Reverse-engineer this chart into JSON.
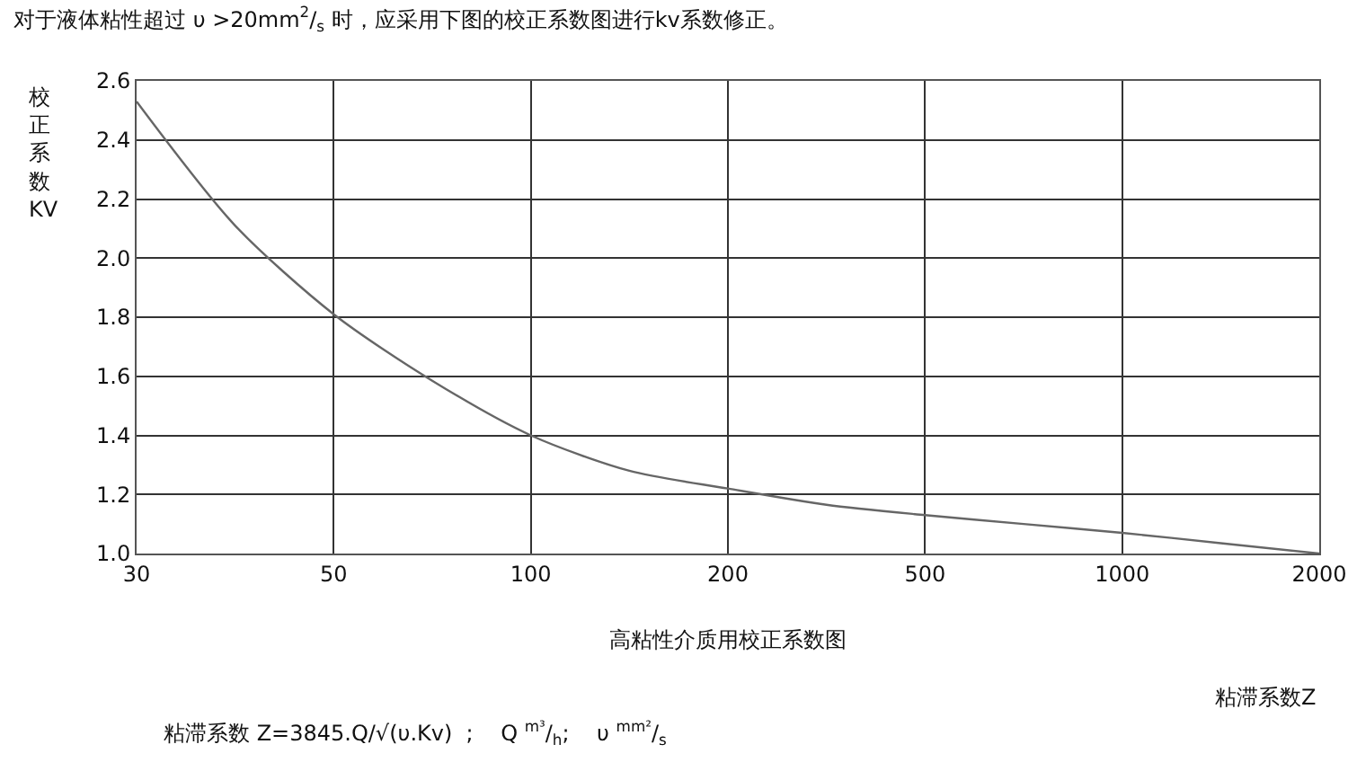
{
  "chart_data": {
    "type": "line",
    "title": "对于液体粘性超过 υ >20mm$^{2}$/$_{s}$ 时，应采用下图的校正系数图进行kv系数修正。",
    "subtitle": "高粘性介质用校正系数图",
    "xlabel": "粘滞系数Z",
    "ylabel": "校正系数KV",
    "categories": [
      "30",
      null,
      "50",
      null,
      "100",
      null,
      "200",
      null,
      "500",
      null,
      "1000",
      null,
      "2000"
    ],
    "series": [
      {
        "color": "#666666",
        "values": [
          2.53,
          2.11,
          1.81,
          1.585,
          1.4,
          1.28,
          1.22,
          1.165,
          1.13,
          1.1,
          1.07,
          1.035,
          1.0
        ]
      }
    ],
    "ylim": [
      1.0,
      2.6
    ],
    "yticks": [
      {
        "value": 1,
        "label": "1.0"
      },
      1.2,
      1.4,
      1.6,
      1.8,
      {
        "value": 2,
        "label": "2.0"
      },
      2.2,
      2.4,
      2.6
    ],
    "grid": true,
    "marker": "none",
    "line_style": "solid",
    "annotations": [
      "粘滞系数 Z=3845.Q/√(υ.Kv)  ;    Q $^{m³}$/$_{h}$;    υ $^{mm²}$/$_{s}$"
    ]
  }
}
